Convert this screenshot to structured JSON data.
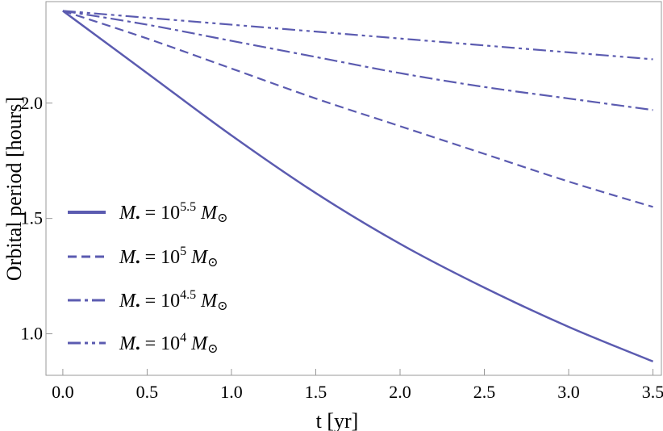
{
  "chart_data": {
    "type": "line",
    "xlabel": "t [yr]",
    "ylabel": "Orbital period [hours]",
    "xlim": [
      -0.1,
      3.55
    ],
    "ylim": [
      0.82,
      2.44
    ],
    "xticks": [
      0.0,
      0.5,
      1.0,
      1.5,
      2.0,
      2.5,
      3.0,
      3.5
    ],
    "xtick_labels": [
      "0.0",
      "0.5",
      "1.0",
      "1.5",
      "2.0",
      "2.5",
      "3.0",
      "3.5"
    ],
    "yticks": [
      1.0,
      1.5,
      2.0
    ],
    "ytick_labels": [
      "1.0",
      "1.5",
      "2.0"
    ],
    "grid": false,
    "legend_position": "left",
    "line_color": "#5b5bb0",
    "series": [
      {
        "legend": {
          "symbol": "M",
          "subscript": "•",
          "equals": " = 10",
          "exponent": "5.5",
          "unit": "M",
          "unit_subscript": "⊙"
        },
        "dash": "solid",
        "x": [
          0.0,
          0.5,
          1.0,
          1.5,
          2.0,
          2.5,
          3.0,
          3.5
        ],
        "y": [
          2.4,
          2.13,
          1.86,
          1.61,
          1.39,
          1.2,
          1.03,
          0.88
        ]
      },
      {
        "legend": {
          "symbol": "M",
          "subscript": "•",
          "equals": " = 10",
          "exponent": "5",
          "unit": "M",
          "unit_subscript": "⊙"
        },
        "dash": "dashed",
        "x": [
          0.0,
          0.5,
          1.0,
          1.5,
          2.0,
          2.5,
          3.0,
          3.5
        ],
        "y": [
          2.4,
          2.28,
          2.15,
          2.02,
          1.9,
          1.78,
          1.66,
          1.55
        ]
      },
      {
        "legend": {
          "symbol": "M",
          "subscript": "•",
          "equals": " = 10",
          "exponent": "4.5",
          "unit": "M",
          "unit_subscript": "⊙"
        },
        "dash": "dashdot",
        "x": [
          0.0,
          0.5,
          1.0,
          1.5,
          2.0,
          2.5,
          3.0,
          3.5
        ],
        "y": [
          2.4,
          2.34,
          2.27,
          2.2,
          2.13,
          2.07,
          2.02,
          1.97
        ]
      },
      {
        "legend": {
          "symbol": "M",
          "subscript": "•",
          "equals": " = 10",
          "exponent": "4",
          "unit": "M",
          "unit_subscript": "⊙"
        },
        "dash": "dashdotdot",
        "x": [
          0.0,
          0.5,
          1.0,
          1.5,
          2.0,
          2.5,
          3.0,
          3.5
        ],
        "y": [
          2.4,
          2.37,
          2.34,
          2.31,
          2.28,
          2.25,
          2.22,
          2.19
        ]
      }
    ]
  }
}
